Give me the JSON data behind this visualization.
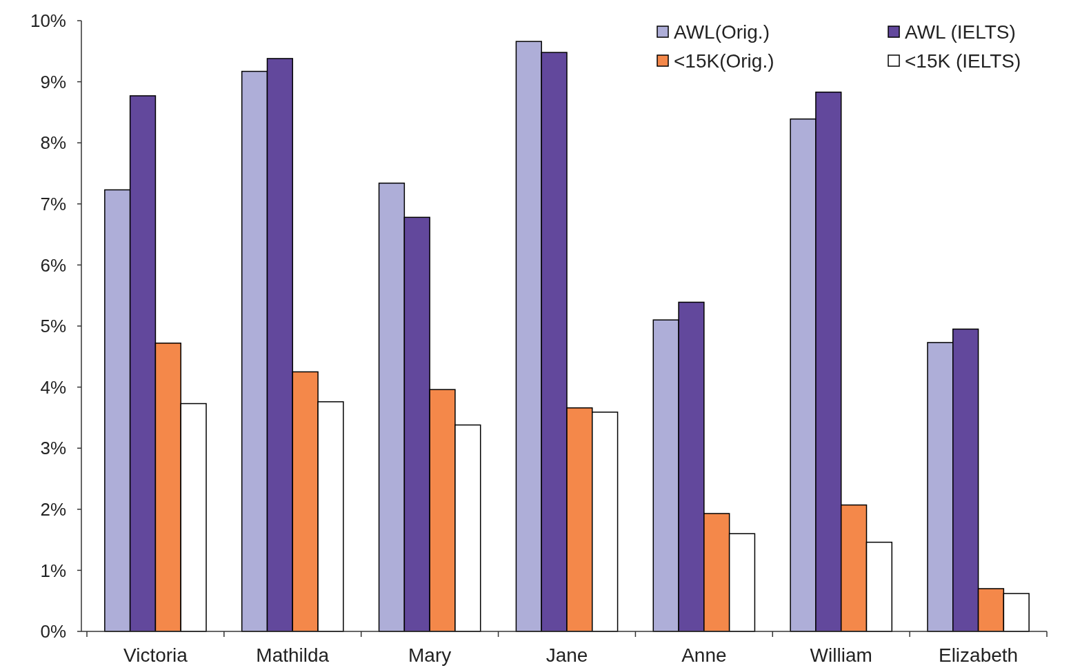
{
  "chart_data": {
    "type": "bar",
    "categories": [
      "Victoria",
      "Mathilda",
      "Mary",
      "Jane",
      "Anne",
      "William",
      "Elizabeth"
    ],
    "series": [
      {
        "name": "AWL(Orig.)",
        "color": "#aeaed8",
        "values": [
          7.23,
          9.17,
          7.34,
          9.66,
          5.1,
          8.39,
          4.73
        ]
      },
      {
        "name": "AWL (IELTS)",
        "color": "#62489c",
        "values": [
          8.77,
          9.38,
          6.78,
          9.48,
          5.39,
          8.83,
          4.95
        ]
      },
      {
        "name": "<15K(Orig.)",
        "color": "#f4884a",
        "values": [
          4.72,
          4.25,
          3.96,
          3.66,
          1.93,
          2.07,
          0.7
        ]
      },
      {
        "name": "<15K (IELTS)",
        "color": "#ffffff",
        "values": [
          3.73,
          3.76,
          3.38,
          3.59,
          1.6,
          1.46,
          0.62
        ]
      }
    ],
    "ylim": [
      0,
      10
    ],
    "yticks": [
      {
        "value": 0,
        "label": "0%"
      },
      {
        "value": 1,
        "label": "1%"
      },
      {
        "value": 2,
        "label": "2%"
      },
      {
        "value": 3,
        "label": "3%"
      },
      {
        "value": 4,
        "label": "4%"
      },
      {
        "value": 5,
        "label": "5%"
      },
      {
        "value": 6,
        "label": "6%"
      },
      {
        "value": 7,
        "label": "7%"
      },
      {
        "value": 8,
        "label": "8%"
      },
      {
        "value": 9,
        "label": "9%"
      },
      {
        "value": 10,
        "label": "10%"
      }
    ],
    "grid": false,
    "legend": "top right"
  }
}
